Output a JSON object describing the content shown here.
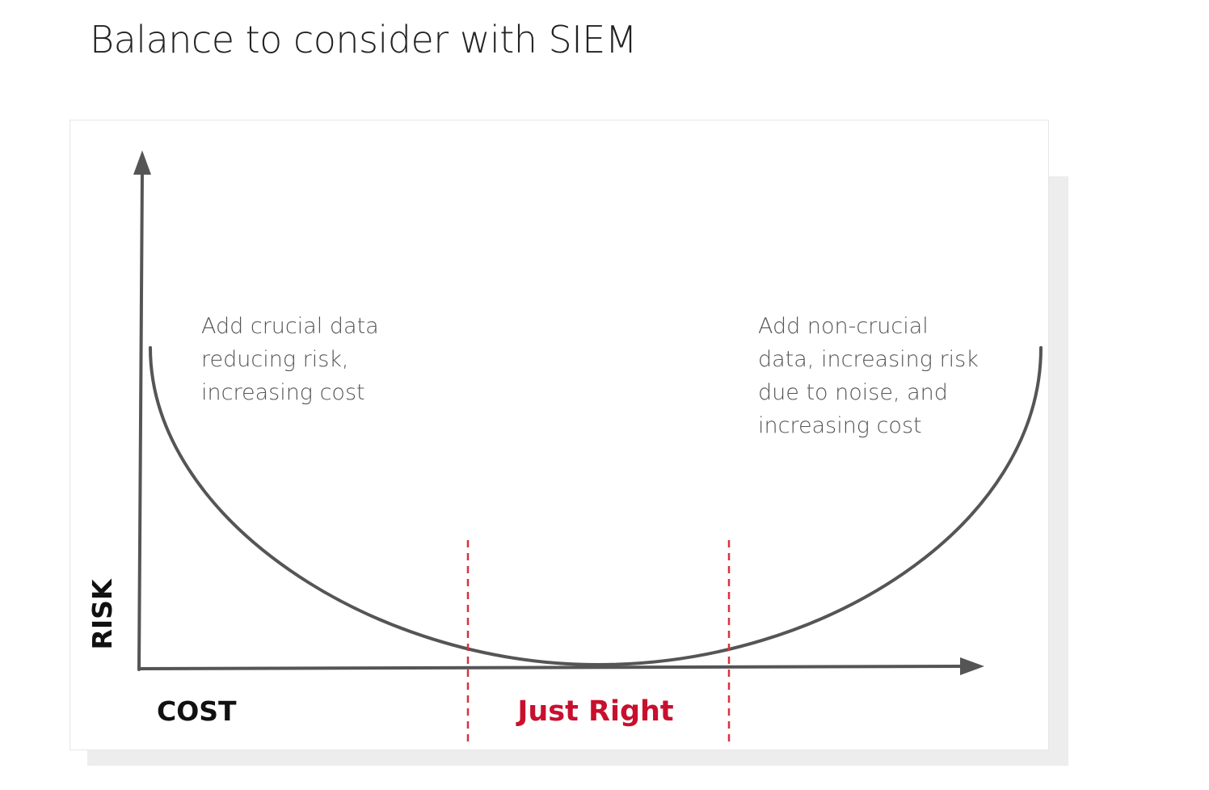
{
  "title": "Balance to consider with SIEM",
  "diagram": {
    "axes": {
      "x_label": "COST",
      "y_label": "RISK"
    },
    "annotations": {
      "left_lines": [
        "Add crucial data",
        "reducing risk,",
        "increasing cost"
      ],
      "right_lines": [
        "Add non-crucial",
        "data, increasing risk",
        "due to noise, and",
        "increasing cost"
      ]
    },
    "zone": {
      "label": "Just Right",
      "color": "#c8102e"
    },
    "colors": {
      "axis": "#555555",
      "curve": "#555555",
      "boundary": "#d9313e",
      "text": "#555555"
    }
  }
}
